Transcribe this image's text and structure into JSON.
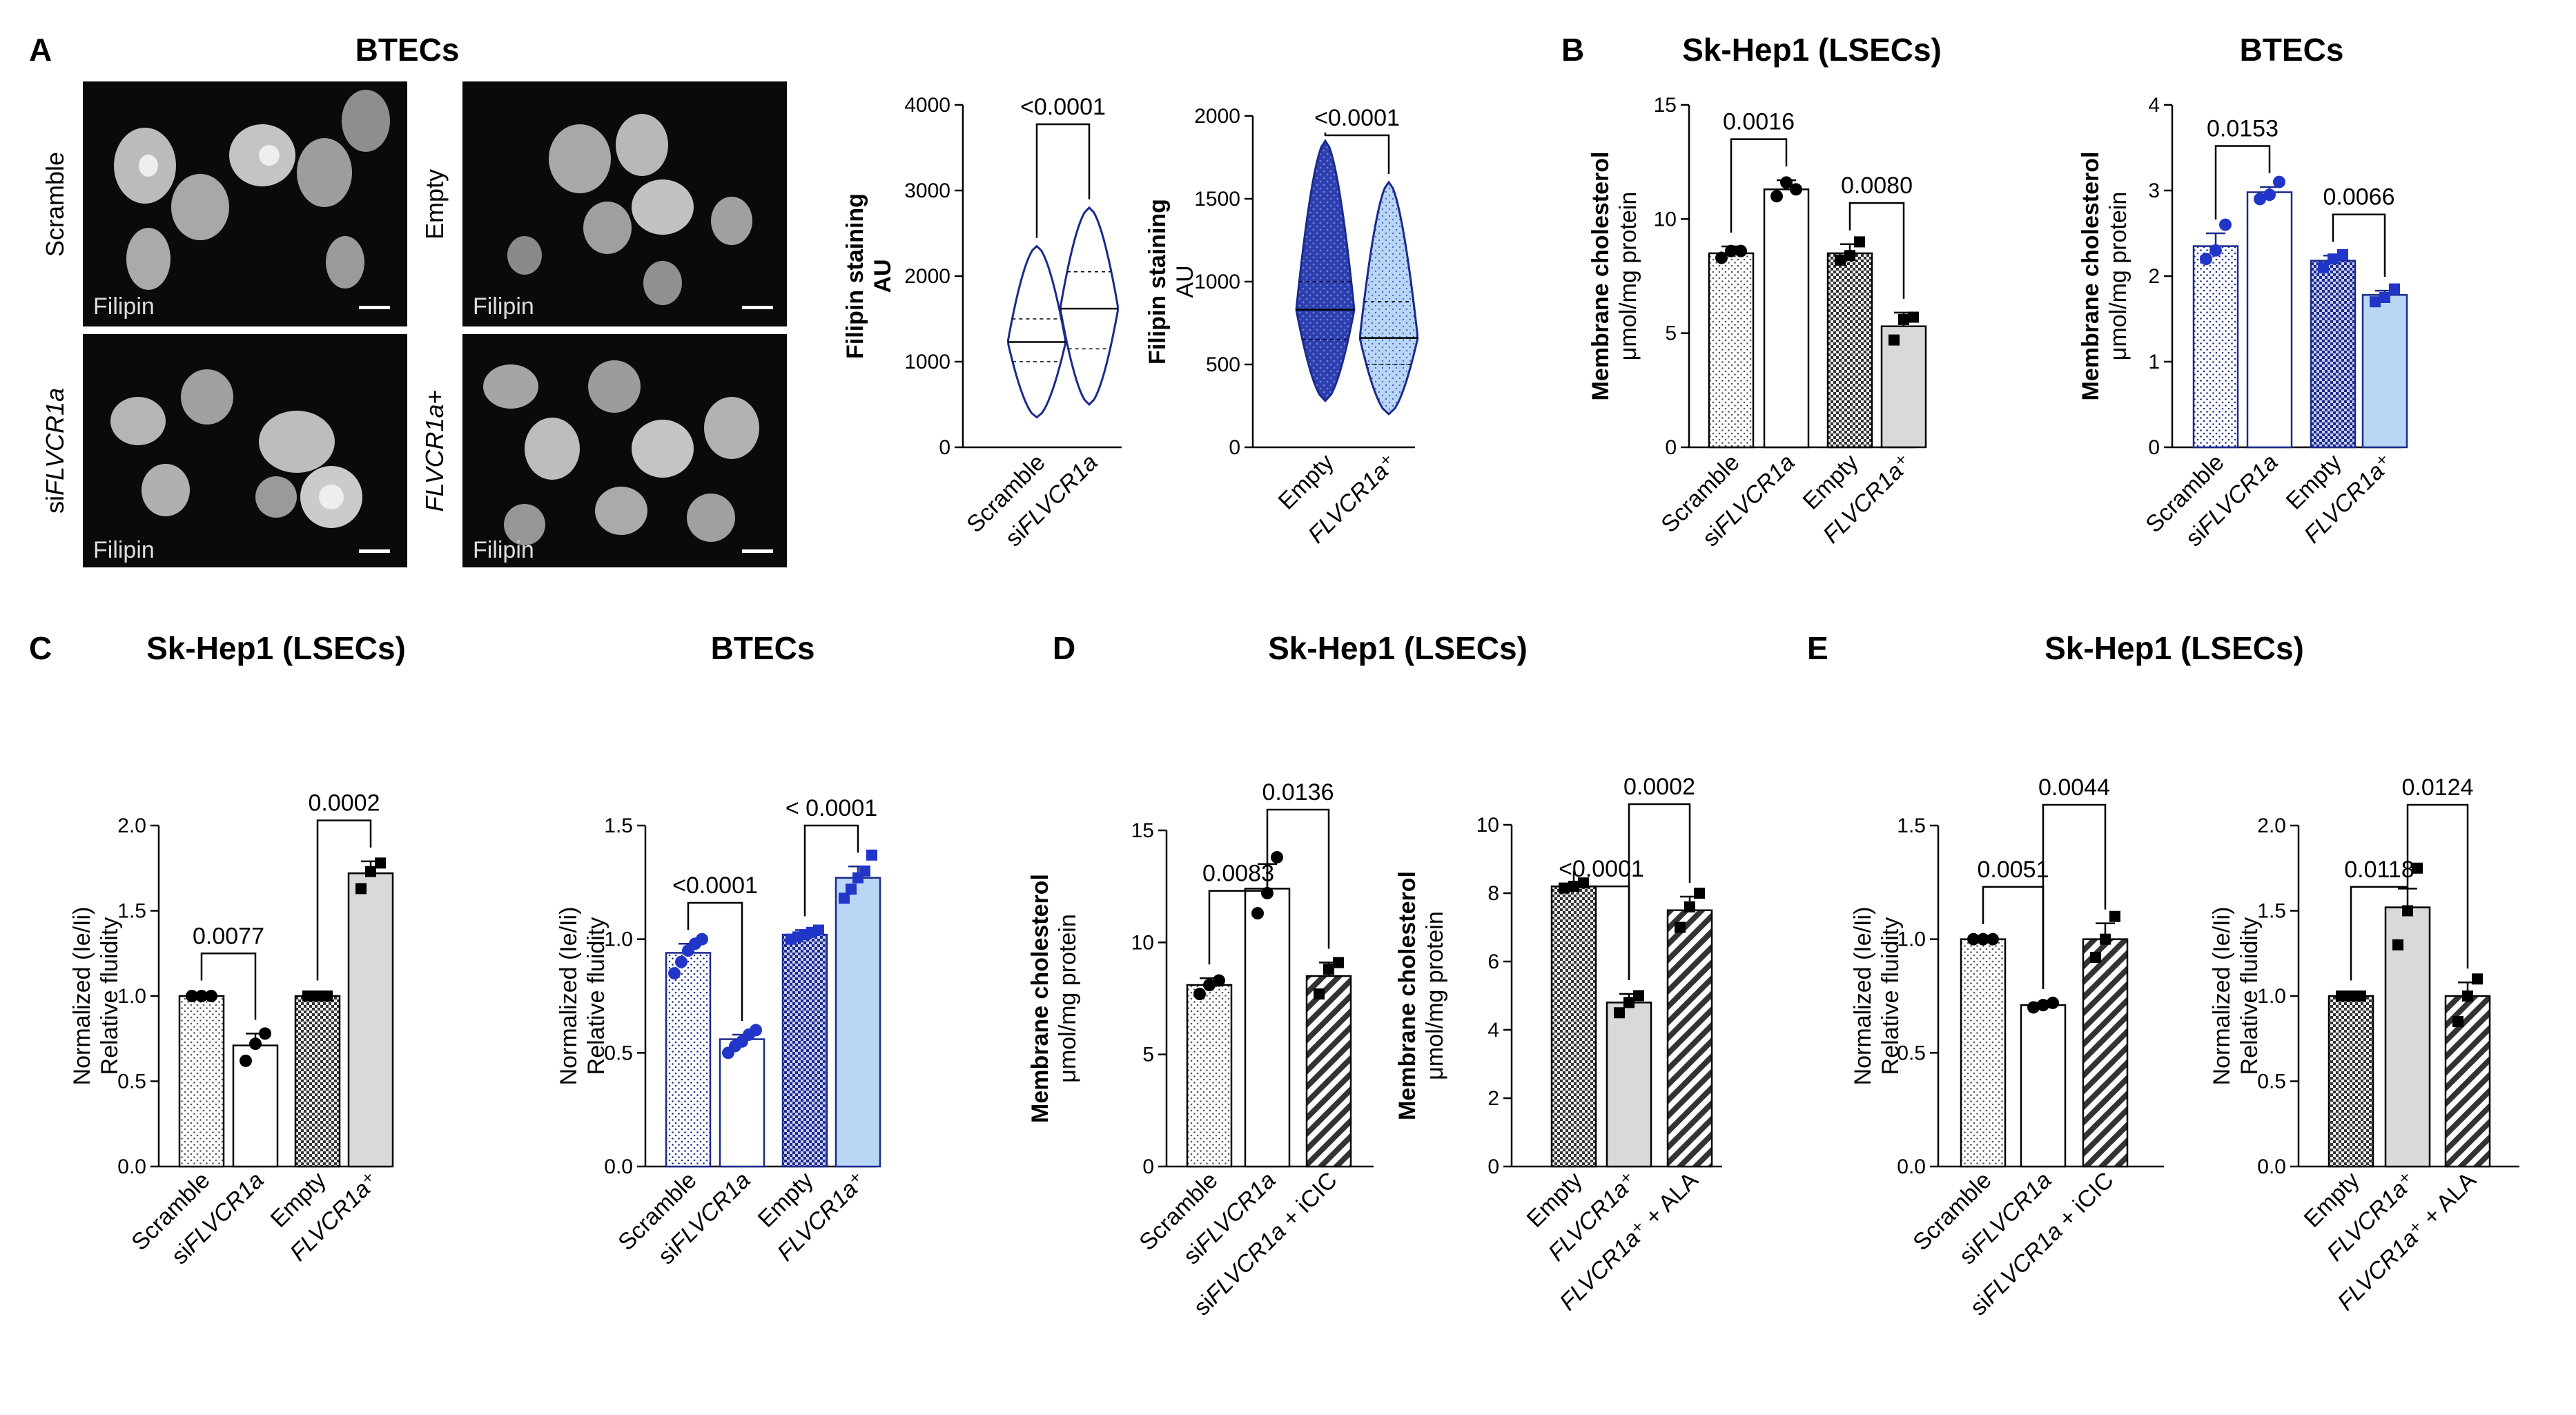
{
  "panels": {
    "A": "A",
    "B": "B",
    "C": "C",
    "D": "D",
    "E": "E"
  },
  "micro": {
    "title": "BTECs",
    "row_labels": [
      "Scramble",
      "siFLVCR1a",
      "Empty",
      "FLVCR1a+"
    ],
    "stain_label": "Filipin"
  },
  "colors": {
    "navy": "#1b2a8c",
    "dark_gray": "#555555",
    "light_gray": "#d9d9d9",
    "light_blue": "#b9d7f5",
    "blue_marker": "#2136c8"
  },
  "chart_data": [
    {
      "id": "A_violin_1",
      "panel": "A",
      "type": "violin",
      "ylabel": [
        "Filipin staining",
        "AU"
      ],
      "ylabel_bold": [
        true,
        true
      ],
      "ylim": [
        0,
        4000
      ],
      "yticks": [
        0,
        1000,
        2000,
        3000,
        4000
      ],
      "categories": [
        "Scramble",
        "siFLVCR1a"
      ],
      "violins": [
        {
          "name": "Scramble",
          "min": 350,
          "q1": 1000,
          "median": 1230,
          "q3": 1500,
          "max": 2350,
          "fill": "#ffffff",
          "edge": "#1b2a8c"
        },
        {
          "name": "siFLVCR1a",
          "min": 500,
          "q1": 1150,
          "median": 1620,
          "q3": 2050,
          "max": 2800,
          "fill": "#ffffff",
          "edge": "#1b2a8c"
        }
      ],
      "comparisons": [
        {
          "from": 0,
          "to": 1,
          "p": "<0.0001"
        }
      ]
    },
    {
      "id": "A_violin_2",
      "panel": "A",
      "type": "violin",
      "ylabel": [
        "Filipin staining",
        "AU"
      ],
      "ylabel_bold": [
        true,
        false
      ],
      "ylim": [
        0,
        2000
      ],
      "yticks": [
        0,
        500,
        1000,
        1500,
        2000
      ],
      "categories": [
        "Empty",
        "FLVCR1a⁺"
      ],
      "violins": [
        {
          "name": "Empty",
          "min": 280,
          "q1": 650,
          "median": 830,
          "q3": 1000,
          "max": 1850,
          "fill": "#1b2a8c",
          "edge": "#1b2a8c"
        },
        {
          "name": "FLVCR1a⁺",
          "min": 200,
          "q1": 500,
          "median": 660,
          "q3": 880,
          "max": 1600,
          "fill": "#b9d7f5",
          "edge": "#1b2a8c"
        }
      ],
      "comparisons": [
        {
          "from": 0,
          "to": 1,
          "p": "<0.0001"
        }
      ]
    },
    {
      "id": "B_lsec",
      "panel": "B",
      "type": "bar",
      "title": "Sk-Hep1 (LSECs)",
      "ylabel": [
        "Membrane cholesterol",
        "μmol/mg protein"
      ],
      "ylim": [
        0,
        15
      ],
      "yticks": [
        0,
        5,
        10,
        15
      ],
      "categories": [
        "Scramble",
        "siFLVCR1a",
        "Empty",
        "FLVCR1a⁺"
      ],
      "values": [
        8.5,
        11.3,
        8.5,
        5.3
      ],
      "errors": [
        0.3,
        0.4,
        0.4,
        0.6
      ],
      "points": [
        [
          8.3,
          8.6,
          8.6
        ],
        [
          11.0,
          11.6,
          11.3
        ],
        [
          8.2,
          8.4,
          9.0
        ],
        [
          4.7,
          5.6,
          5.7
        ]
      ],
      "patterns": [
        "dots",
        "white",
        "check",
        "lightgray"
      ],
      "marker": "#000000",
      "edge": "#000000",
      "comparisons": [
        {
          "from": 0,
          "to": 1,
          "p": "0.0016"
        },
        {
          "from": 2,
          "to": 3,
          "p": "0.0080"
        }
      ]
    },
    {
      "id": "B_btec",
      "panel": "B",
      "type": "bar",
      "title": "BTECs",
      "ylabel": [
        "Membrane cholesterol",
        "μmol/mg protein"
      ],
      "ylim": [
        0,
        4
      ],
      "yticks": [
        0,
        1,
        2,
        3,
        4
      ],
      "categories": [
        "Scramble",
        "siFLVCR1a",
        "Empty",
        "FLVCR1a⁺"
      ],
      "values": [
        2.35,
        2.98,
        2.18,
        1.78
      ],
      "errors": [
        0.15,
        0.06,
        0.06,
        0.05
      ],
      "points": [
        [
          2.2,
          2.3,
          2.6
        ],
        [
          2.9,
          2.95,
          3.1
        ],
        [
          2.1,
          2.2,
          2.25
        ],
        [
          1.7,
          1.75,
          1.85
        ]
      ],
      "patterns": [
        "dots",
        "white",
        "check",
        "lightblue"
      ],
      "marker": "#2136c8",
      "edge": "#1b2a8c",
      "comparisons": [
        {
          "from": 0,
          "to": 1,
          "p": "0.0153"
        },
        {
          "from": 2,
          "to": 3,
          "p": "0.0066"
        }
      ]
    },
    {
      "id": "C_lsec",
      "panel": "C",
      "type": "bar",
      "title": "Sk-Hep1 (LSECs)",
      "ylabel": [
        "Normalized  (Ie/Ii)",
        "Relative fluidity"
      ],
      "ylim": [
        0,
        2.0
      ],
      "yticks": [
        "0.0",
        "0.5",
        "1.0",
        "1.5",
        "2.0"
      ],
      "categories": [
        "Scramble",
        "siFLVCR1a",
        "Empty",
        "FLVCR1a⁺"
      ],
      "values": [
        1.0,
        0.71,
        1.0,
        1.72
      ],
      "errors": [
        0.01,
        0.07,
        0.01,
        0.07
      ],
      "points": [
        [
          1.0,
          1.0,
          1.0
        ],
        [
          0.62,
          0.72,
          0.78
        ],
        [
          1.0,
          1.0,
          1.0
        ],
        [
          1.63,
          1.73,
          1.78
        ]
      ],
      "patterns": [
        "dots",
        "white",
        "check",
        "lightgray"
      ],
      "marker": "#000000",
      "edge": "#000000",
      "comparisons": [
        {
          "from": 0,
          "to": 1,
          "p": "0.0077"
        },
        {
          "from": 2,
          "to": 3,
          "p": "0.0002"
        }
      ]
    },
    {
      "id": "C_btec",
      "panel": "C",
      "type": "bar",
      "title": "BTECs",
      "ylabel": [
        "Normalized  (Ie/Ii)",
        "Relative fluidity"
      ],
      "ylim": [
        0,
        1.5
      ],
      "yticks": [
        "0.0",
        "0.5",
        "1.0",
        "1.5"
      ],
      "categories": [
        "Scramble",
        "siFLVCR1a",
        "Empty",
        "FLVCR1a⁺"
      ],
      "values": [
        0.94,
        0.56,
        1.02,
        1.27
      ],
      "errors": [
        0.04,
        0.02,
        0.02,
        0.05
      ],
      "points": [
        [
          0.85,
          0.9,
          0.95,
          0.98,
          1.0
        ],
        [
          0.5,
          0.53,
          0.55,
          0.58,
          0.6
        ],
        [
          1.0,
          1.01,
          1.02,
          1.03,
          1.04
        ],
        [
          1.18,
          1.22,
          1.27,
          1.3,
          1.37
        ]
      ],
      "patterns": [
        "dots",
        "white",
        "check",
        "lightblue"
      ],
      "marker": "#2136c8",
      "edge": "#1b2a8c",
      "comparisons": [
        {
          "from": 0,
          "to": 1,
          "p": "<0.0001"
        },
        {
          "from": 2,
          "to": 3,
          "p": "< 0.0001"
        }
      ]
    },
    {
      "id": "D_left",
      "panel": "D",
      "type": "bar",
      "title": "Sk-Hep1 (LSECs)",
      "ylabel": [
        "Membrane cholesterol",
        "μmol/mg protein"
      ],
      "ylim": [
        0,
        15
      ],
      "yticks": [
        0,
        5,
        10,
        15
      ],
      "categories": [
        "Scramble",
        "siFLVCR1a",
        "siFLVCR1a + iCIC"
      ],
      "values": [
        8.1,
        12.4,
        8.5
      ],
      "errors": [
        0.3,
        1.1,
        0.6
      ],
      "points": [
        [
          7.7,
          8.1,
          8.3
        ],
        [
          11.3,
          12.2,
          13.8
        ],
        [
          7.7,
          8.8,
          9.1
        ]
      ],
      "patterns": [
        "dots",
        "white",
        "stripe"
      ],
      "marker": "#000000",
      "edge": "#000000",
      "comparisons": [
        {
          "from": 0,
          "to": 1,
          "p": "0.0083"
        },
        {
          "from": 1,
          "to": 2,
          "p": "0.0136"
        }
      ]
    },
    {
      "id": "D_right",
      "panel": "D",
      "type": "bar",
      "ylabel": [
        "Membrane cholesterol",
        "μmol/mg protein"
      ],
      "ylim": [
        0,
        10
      ],
      "yticks": [
        0,
        2,
        4,
        6,
        8,
        10
      ],
      "categories": [
        "Empty",
        "FLVCR1a⁺",
        "FLVCR1a⁺ + ALA"
      ],
      "values": [
        8.2,
        4.8,
        7.5
      ],
      "errors": [
        0.05,
        0.25,
        0.4
      ],
      "points": [
        [
          8.15,
          8.2,
          8.3
        ],
        [
          4.5,
          4.8,
          5.0
        ],
        [
          7.0,
          7.6,
          8.0
        ]
      ],
      "patterns": [
        "check",
        "lightgray",
        "stripe"
      ],
      "marker": "#000000",
      "edge": "#000000",
      "comparisons": [
        {
          "from": 0,
          "to": 1,
          "p": "<0.0001"
        },
        {
          "from": 1,
          "to": 2,
          "p": "0.0002"
        }
      ]
    },
    {
      "id": "E_left",
      "panel": "E",
      "type": "bar",
      "title": "Sk-Hep1 (LSECs)",
      "ylabel": [
        "Normalized  (Ie/Ii)",
        "Relative fluidity"
      ],
      "ylim": [
        0,
        1.5
      ],
      "yticks": [
        "0.0",
        "0.5",
        "1.0",
        "1.5"
      ],
      "categories": [
        "Scramble",
        "siFLVCR1a",
        "siFLVCR1a + iCIC"
      ],
      "values": [
        1.0,
        0.71,
        1.0
      ],
      "errors": [
        0.005,
        0.01,
        0.07
      ],
      "points": [
        [
          1.0,
          1.0,
          1.0
        ],
        [
          0.7,
          0.71,
          0.72
        ],
        [
          0.92,
          1.0,
          1.1
        ]
      ],
      "patterns": [
        "dots",
        "white",
        "stripe"
      ],
      "marker": "#000000",
      "edge": "#000000",
      "comparisons": [
        {
          "from": 0,
          "to": 1,
          "p": "0.0051"
        },
        {
          "from": 1,
          "to": 2,
          "p": "0.0044"
        }
      ]
    },
    {
      "id": "E_right",
      "panel": "E",
      "type": "bar",
      "ylabel": [
        "Normalized  (Ie/Ii)",
        "Relative fluidity"
      ],
      "ylim": [
        0,
        2.0
      ],
      "yticks": [
        "0.0",
        "0.5",
        "1.0",
        "1.5",
        "2.0"
      ],
      "categories": [
        "Empty",
        "FLVCR1a⁺",
        "FLVCR1a⁺ + ALA"
      ],
      "values": [
        1.0,
        1.52,
        1.0
      ],
      "errors": [
        0.01,
        0.11,
        0.08
      ],
      "points": [
        [
          1.0,
          1.0,
          1.0
        ],
        [
          1.3,
          1.5,
          1.75
        ],
        [
          0.85,
          1.0,
          1.1
        ]
      ],
      "patterns": [
        "check",
        "lightgray",
        "stripe"
      ],
      "marker": "#000000",
      "edge": "#000000",
      "comparisons": [
        {
          "from": 0,
          "to": 1,
          "p": "0.0118"
        },
        {
          "from": 1,
          "to": 2,
          "p": "0.0124"
        }
      ]
    }
  ]
}
